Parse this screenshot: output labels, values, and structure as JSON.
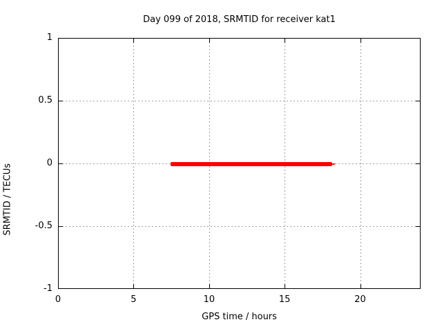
{
  "chart_data": {
    "type": "line",
    "title": "Day 099 of 2018, SRMTID for receiver kat1",
    "xlabel": "GPS time / hours",
    "ylabel": "SRMTID / TECUs",
    "xlim": [
      0,
      24
    ],
    "ylim": [
      -1,
      1
    ],
    "xticks": {
      "values": [
        0,
        5,
        10,
        15,
        20
      ],
      "labels": [
        "0",
        "5",
        "10",
        "15",
        "20"
      ]
    },
    "yticks": {
      "values": [
        1,
        0.5,
        0,
        -0.5,
        -1
      ],
      "labels": [
        "1",
        "0.5",
        "0",
        "-0.5",
        "-1"
      ]
    },
    "grid": true,
    "legend": "none",
    "colors": {
      "line": "#ff0000",
      "grid": "#9e9e9e",
      "axis": "#000000",
      "background": "#ffffff",
      "text": "#000000"
    },
    "series": [
      {
        "name": "SRMTID",
        "color": "#ff0000",
        "segments": [
          {
            "x_start": 7.4,
            "x_end": 18.1,
            "y": 0,
            "thickness_px": 6
          },
          {
            "x_start": 18.1,
            "x_end": 18.3,
            "y": 0,
            "thickness_px": 2
          }
        ]
      }
    ]
  }
}
